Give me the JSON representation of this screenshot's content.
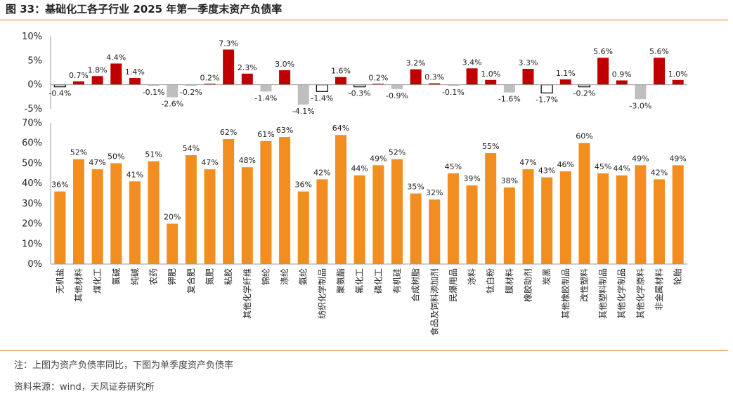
{
  "figure": {
    "title": "图 33：基础化工各子行业 2025 年第一季度末资产负债率",
    "note": "注：上图为资产负债率同比，下图为单季度资产负债率",
    "source": "资料来源：wind，天风证券研究所"
  },
  "colors": {
    "positive": "#c00000",
    "negative": "#bfbfbf",
    "orange": "#f28d1f",
    "outline": "#000000",
    "rule": "#e07a1a"
  },
  "chart_data": [
    {
      "type": "bar",
      "title": "",
      "xlabel": "",
      "ylabel": "",
      "ylim": [
        -5,
        10
      ],
      "yticks": [
        "-5%",
        "0%",
        "5%",
        "10%"
      ],
      "categories": [
        "无机盐",
        "其他材料",
        "煤化工",
        "氯碱",
        "纯碱",
        "农药",
        "钾肥",
        "复合肥",
        "氮肥",
        "粘胶",
        "其他化学纤维",
        "锦纶",
        "涤纶",
        "氨纶",
        "纺织化学制品",
        "聚氨酯",
        "氟化工",
        "磷化工",
        "有机硅",
        "合成树脂",
        "食品及饲料添加剂",
        "民爆用品",
        "涂料",
        "钛白粉",
        "膜材料",
        "橡胶助剂",
        "炭黑",
        "其他橡胶制品",
        "改性塑料",
        "其他塑料制品",
        "其他化学制品",
        "其他化学原料",
        "非金属材料",
        "轮胎"
      ],
      "values": [
        -0.4,
        0.7,
        1.8,
        4.4,
        1.4,
        -0.1,
        -2.6,
        -0.2,
        0.2,
        7.3,
        2.3,
        -1.4,
        3.0,
        -4.1,
        -1.4,
        1.6,
        -0.3,
        0.2,
        -0.9,
        3.2,
        0.3,
        -0.1,
        3.4,
        1.0,
        -1.6,
        3.3,
        -1.7,
        1.1,
        -0.2,
        5.6,
        0.9,
        -3.0,
        5.6,
        1.0
      ],
      "labels": [
        "-0.4%",
        "0.7%",
        "1.8%",
        "4.4%",
        "1.4%",
        "-0.1%",
        "-2.6%",
        "-0.2%",
        "0.2%",
        "7.3%",
        "2.3%",
        "-1.4%",
        "3.0%",
        "-4.1%",
        "-1.4%",
        "1.6%",
        "-0.3%",
        "0.2%",
        "-0.9%",
        "3.2%",
        "0.3%",
        "-0.1%",
        "3.4%",
        "1.0%",
        "-1.6%",
        "3.3%",
        "-1.7%",
        "1.1%",
        "-0.2%",
        "5.6%",
        "0.9%",
        "-3.0%",
        "5.6%",
        "1.0%"
      ],
      "labeled_values": [
        1.8,
        4.4,
        1.4,
        -2.6,
        0.2,
        7.3,
        2.3,
        -1.4,
        3.0,
        -4.1,
        1.6,
        0.2,
        -0.9,
        3.2,
        0.3,
        3.4,
        1.0,
        -1.6,
        3.3,
        1.1,
        5.6,
        0.9,
        -3.0,
        5.6,
        1.0
      ],
      "outlined_categories": [
        "无机盐",
        "纺织化学制品",
        "氟化工",
        "炭黑",
        "改性塑料"
      ]
    },
    {
      "type": "bar",
      "title": "",
      "xlabel": "",
      "ylabel": "",
      "ylim": [
        0,
        70
      ],
      "yticks": [
        "0%",
        "10%",
        "20%",
        "30%",
        "40%",
        "50%",
        "60%",
        "70%"
      ],
      "values": [
        36,
        52,
        47,
        50,
        41,
        51,
        20,
        54,
        47,
        62,
        48,
        61,
        63,
        36,
        42,
        64,
        44,
        49,
        52,
        35,
        32,
        45,
        39,
        55,
        38,
        47,
        43,
        46,
        60,
        45,
        44,
        49,
        42,
        49
      ],
      "labels": [
        "36%",
        "52%",
        "47%",
        "50%",
        "41%",
        "51%",
        "20%",
        "54%",
        "47%",
        "62%",
        "48%",
        "61%",
        "63%",
        "36%",
        "42%",
        "64%",
        "44%",
        "49%",
        "52%",
        "35%",
        "32%",
        "45%",
        "39%",
        "55%",
        "38%",
        "47%",
        "43%",
        "46%",
        "60%",
        "45%",
        "44%",
        "49%",
        "42%",
        "49%"
      ]
    }
  ]
}
